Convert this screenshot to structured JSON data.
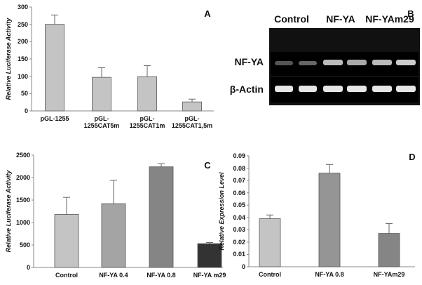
{
  "chart_data": [
    {
      "type": "bar",
      "panel": "A",
      "y_label": "Relative Luciferase Activity",
      "categories": [
        "pGL-1255",
        "pGL-1255CAT5m",
        "pGL-1255CAT1m",
        "pGL-1255CAT1,5m"
      ],
      "values": [
        250,
        97,
        99,
        26
      ],
      "errors": [
        27,
        28,
        32,
        8
      ],
      "colors": [
        "#c4c4c4",
        "#c4c4c4",
        "#c4c4c4",
        "#c4c4c4"
      ],
      "ylim": [
        0,
        300
      ],
      "yticks": [
        0,
        50,
        100,
        150,
        200,
        250,
        300
      ]
    },
    {
      "type": "bar",
      "panel": "C",
      "y_label": "Relative Luciferase Activity",
      "categories": [
        "Control",
        "NF-YA 0.4",
        "NF-YA 0.8",
        "NF-YA m29"
      ],
      "values": [
        1180,
        1420,
        2240,
        530
      ],
      "errors": [
        380,
        520,
        70,
        25
      ],
      "colors": [
        "#c4c4c4",
        "#a4a4a4",
        "#858585",
        "#333333"
      ],
      "ylim": [
        0,
        2500
      ],
      "yticks": [
        0,
        500,
        1000,
        1500,
        2000,
        2500
      ]
    },
    {
      "type": "bar",
      "panel": "D",
      "y_label": "Relative Expression Level",
      "categories": [
        "Control",
        "NF-YA 0.8",
        "NF-YAm29"
      ],
      "values": [
        0.039,
        0.076,
        0.027
      ],
      "errors": [
        0.003,
        0.007,
        0.008
      ],
      "colors": [
        "#c4c4c4",
        "#959595",
        "#858585"
      ],
      "ylim": [
        0,
        0.09
      ],
      "yticks": [
        0,
        0.01,
        0.02,
        0.03,
        0.04,
        0.05,
        0.06,
        0.07,
        0.08,
        0.09
      ]
    }
  ],
  "gel": {
    "panel": "B",
    "columns": [
      "Control",
      "NF-YA",
      "NF-YAm29"
    ],
    "rows": [
      "NF-YA",
      "β-Actin"
    ]
  }
}
